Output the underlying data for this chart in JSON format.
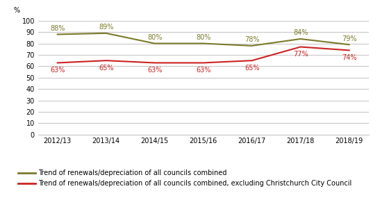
{
  "years": [
    "2012/13",
    "2013/14",
    "2014/15",
    "2015/16",
    "2016/17",
    "2017/18",
    "2018/19"
  ],
  "all_councils": [
    88,
    89,
    80,
    80,
    78,
    84,
    79
  ],
  "excl_christchurch": [
    63,
    65,
    63,
    63,
    65,
    77,
    74
  ],
  "all_councils_color": "#7a7a2a",
  "excl_christchurch_color": "#cc2222",
  "all_councils_label": "Trend of renewals/depreciation of all councils combined",
  "excl_christchurch_label": "Trend of renewals/depreciation of all councils combined, excluding Christchurch City Council",
  "ylabel": "%",
  "ylim": [
    0,
    100
  ],
  "yticks": [
    0,
    10,
    20,
    30,
    40,
    50,
    60,
    70,
    80,
    90,
    100
  ],
  "grid_color": "#c8c8c8",
  "background_color": "#ffffff",
  "annotation_fontsize": 7,
  "tick_fontsize": 7,
  "legend_fontsize": 7
}
